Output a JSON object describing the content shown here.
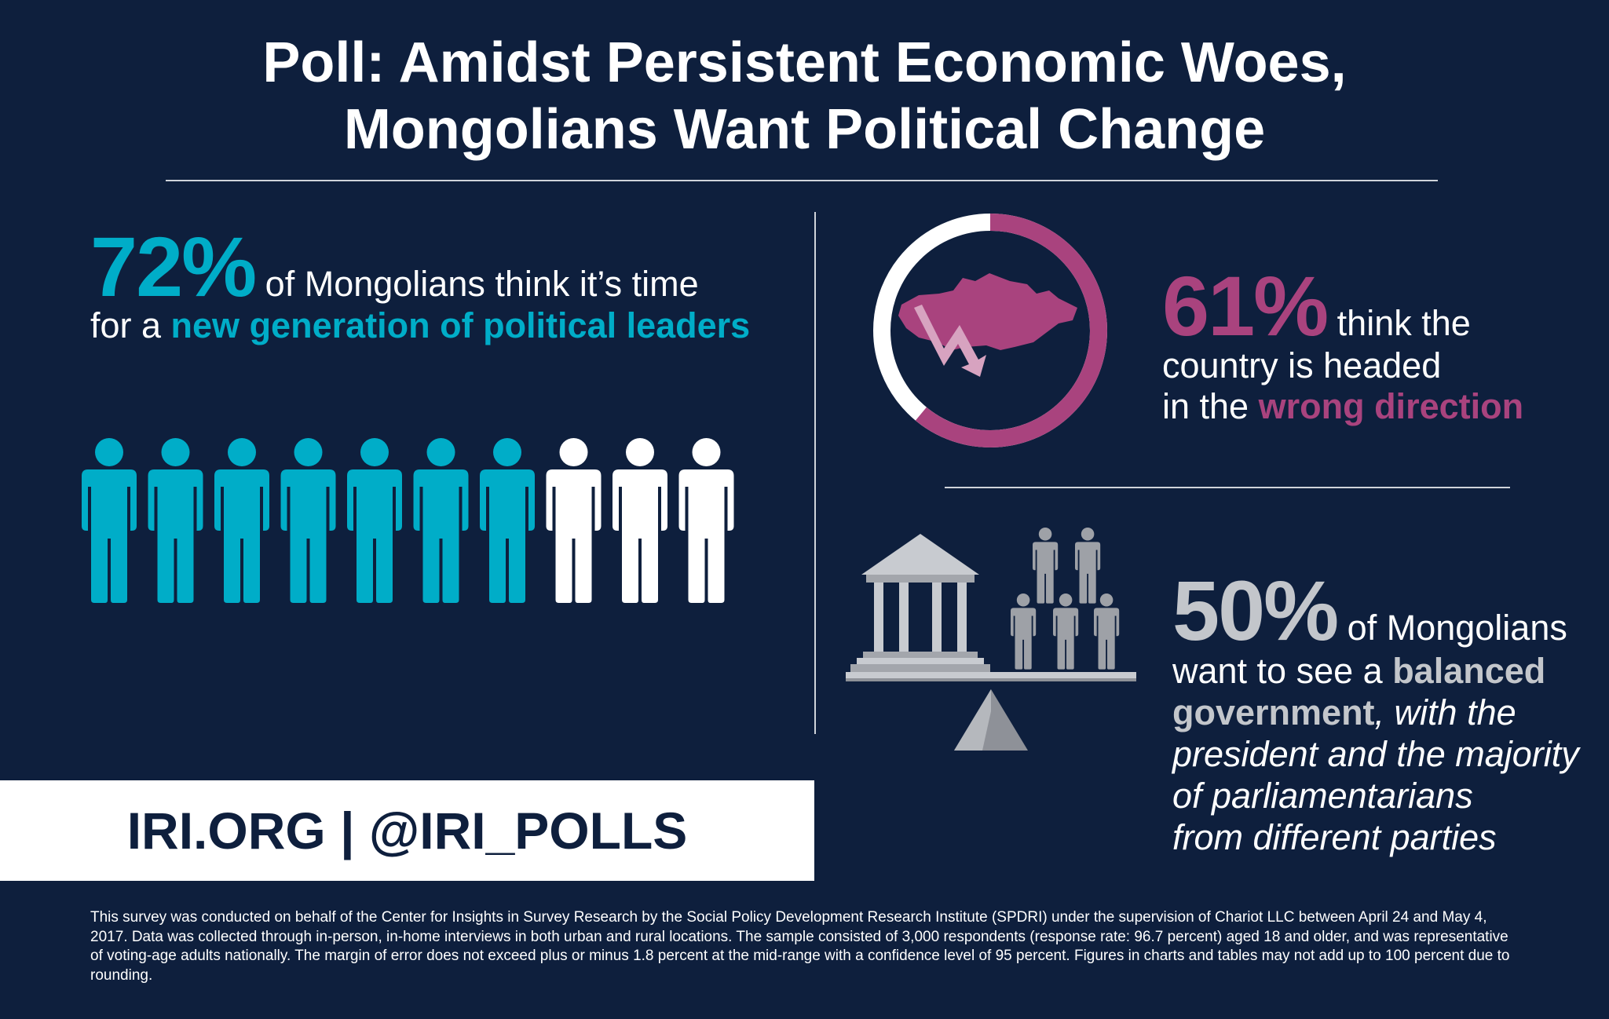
{
  "title": {
    "line1": "Poll: Amidst Persistent Economic Woes,",
    "line2": "Mongolians Want Political Change"
  },
  "stat_leaders": {
    "percent": "72%",
    "text_a": " of Mongolians think it’s time",
    "text_b": "for a ",
    "highlight": "new generation of political leaders",
    "people_total": 10,
    "people_highlighted": 7
  },
  "stat_direction": {
    "percent": "61%",
    "text_a": " think the",
    "text_b": "country is headed",
    "text_c": "in the ",
    "highlight": "wrong direction",
    "ring_fraction": 0.61
  },
  "stat_balance": {
    "percent": "50%",
    "text_a": " of Mongolians",
    "text_b": "want to see a ",
    "highlight": "balanced government",
    "text_c": ", with the",
    "line4": "president and the majority",
    "line5": "of parliamentarians",
    "line6": "from different parties"
  },
  "footer": {
    "links": "IRI.ORG  |  @IRI_POLLS"
  },
  "methodology": "This survey was conducted on behalf of the Center for Insights in Survey Research by the Social Policy Development Research Institute (SPDRI) under the supervision of Chariot LLC between April 24 and May 4, 2017. Data was collected through in-person, in-home interviews in both urban and rural locations. The sample consisted of 3,000 respondents (response rate: 96.7 percent) aged 18 and older, and was representative of voting-age adults nationally. The margin of error does not exceed plus or minus 1.8 percent at the mid-range with a confidence level of 95 percent. Figures in charts and tables may not add up to 100 percent due to rounding.",
  "colors": {
    "background": "#0e1f3d",
    "teal": "#00adc8",
    "magenta": "#a9437e",
    "silver": "#c3c6cb",
    "white": "#ffffff"
  }
}
